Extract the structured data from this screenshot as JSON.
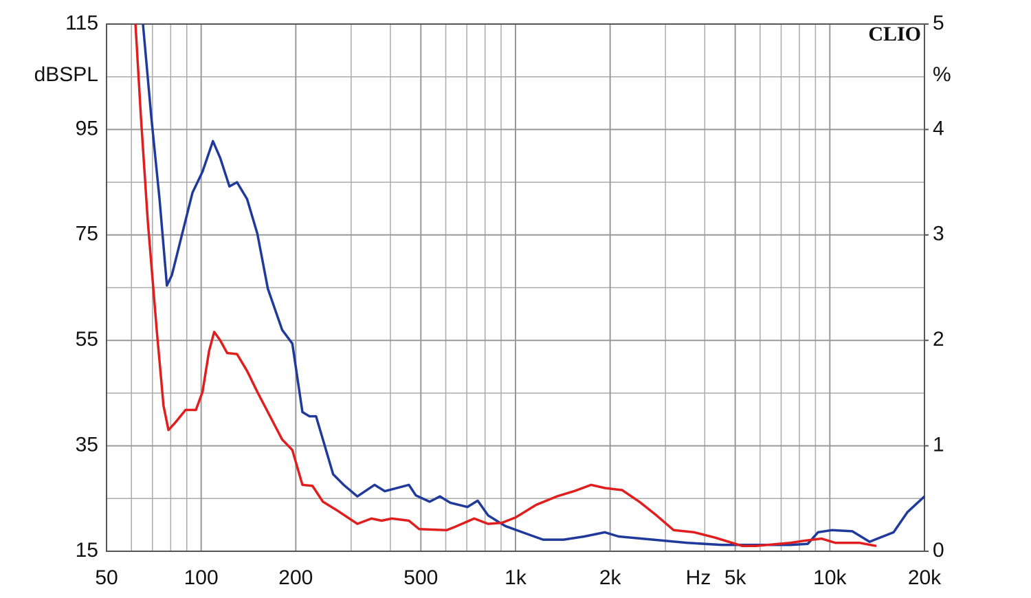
{
  "chart_data": {
    "type": "line",
    "y_label": "dBSPL",
    "y2_label": "%",
    "x_unit": "Hz",
    "watermark": "CLIO",
    "xscale": "log",
    "grid": true,
    "xlim": [
      50,
      20000
    ],
    "xticks": [
      50,
      100,
      200,
      500,
      {
        "value": 1000,
        "label": "1k"
      },
      {
        "value": 2000,
        "label": "2k"
      },
      {
        "value": 5000,
        "label": "5k"
      },
      {
        "value": 10000,
        "label": "10k"
      },
      {
        "value": 20000,
        "label": "20k"
      }
    ],
    "xminor": [
      60,
      70,
      80,
      90,
      300,
      400,
      600,
      700,
      800,
      900,
      3000,
      4000,
      6000,
      7000,
      8000,
      9000
    ],
    "ylim": [
      15,
      115
    ],
    "yticks": [
      15,
      35,
      55,
      75,
      95,
      115
    ],
    "yminor": [
      25,
      45,
      65,
      85,
      105
    ],
    "y2lim": [
      0,
      5
    ],
    "y2ticks": [
      0,
      1,
      2,
      3,
      4,
      5
    ],
    "series": [
      {
        "color": "#1f3a9a",
        "axis": "y2",
        "x": [
          65.3,
          69.4,
          73.7,
          77.8,
          80.7,
          87,
          93.8,
          101,
          109,
          115,
          123,
          130,
          140,
          151,
          163,
          181,
          195,
          210,
          221,
          232,
          244,
          263,
          284,
          314,
          356,
          384,
          458,
          482,
          533,
          575,
          620,
          703,
          758,
          818,
          927,
          1052,
          1224,
          1423,
          1655,
          1924,
          2128,
          2739,
          3522,
          4530,
          5826,
          7494,
          8500,
          9170,
          10140,
          11790,
          13380,
          15950,
          17640,
          20000
        ],
        "values": [
          5.0,
          4.12,
          3.34,
          2.52,
          2.62,
          3.01,
          3.4,
          3.6,
          3.89,
          3.73,
          3.46,
          3.5,
          3.34,
          3.01,
          2.49,
          2.1,
          1.97,
          1.32,
          1.28,
          1.28,
          1.06,
          0.73,
          0.63,
          0.52,
          0.63,
          0.57,
          0.63,
          0.53,
          0.47,
          0.52,
          0.46,
          0.42,
          0.48,
          0.34,
          0.24,
          0.18,
          0.11,
          0.11,
          0.14,
          0.18,
          0.14,
          0.11,
          0.08,
          0.06,
          0.06,
          0.06,
          0.07,
          0.18,
          0.2,
          0.19,
          0.09,
          0.18,
          0.37,
          0.52
        ]
      },
      {
        "color": "#e01e1e",
        "axis": "y2",
        "x": [
          61.8,
          64.3,
          67.6,
          72.2,
          75.9,
          78.7,
          82.7,
          89.2,
          96.2,
          101,
          106,
          110,
          115,
          121,
          130,
          140,
          151,
          163,
          181,
          195,
          210,
          226,
          244,
          270,
          314,
          348,
          375,
          404,
          458,
          494,
          604,
          652,
          739,
          818,
          905,
          1000,
          1163,
          1353,
          1535,
          1741,
          1924,
          2183,
          2476,
          2808,
          3186,
          3704,
          4307,
          5270,
          5826,
          7494,
          8290,
          9400,
          10400,
          12400,
          14060
        ],
        "values": [
          5.0,
          4.12,
          3.14,
          2.1,
          1.38,
          1.15,
          1.22,
          1.34,
          1.34,
          1.51,
          1.9,
          2.08,
          2.0,
          1.88,
          1.87,
          1.71,
          1.51,
          1.32,
          1.06,
          0.96,
          0.63,
          0.62,
          0.47,
          0.39,
          0.26,
          0.31,
          0.29,
          0.31,
          0.29,
          0.21,
          0.2,
          0.24,
          0.31,
          0.26,
          0.27,
          0.32,
          0.44,
          0.52,
          0.57,
          0.63,
          0.6,
          0.58,
          0.47,
          0.34,
          0.2,
          0.18,
          0.13,
          0.05,
          0.05,
          0.08,
          0.1,
          0.12,
          0.08,
          0.08,
          0.05
        ]
      }
    ]
  }
}
